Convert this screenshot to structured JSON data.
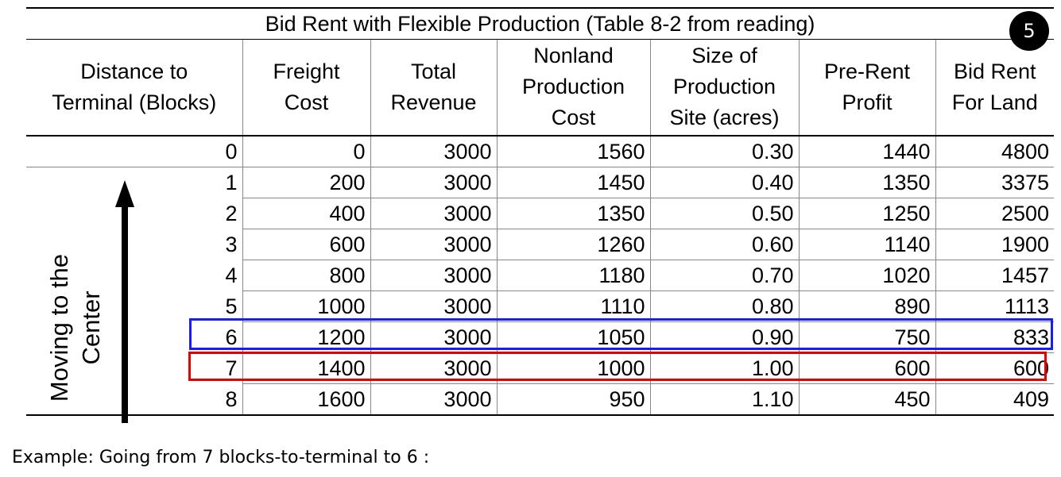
{
  "table": {
    "title": "Bid Rent with Flexible Production (Table 8-2 from reading)",
    "headers": [
      [
        "Distance to",
        "Terminal (Blocks)"
      ],
      [
        "Freight",
        "Cost"
      ],
      [
        "Total",
        "Revenue"
      ],
      [
        "Nonland",
        "Production",
        "Cost"
      ],
      [
        "Size of",
        "Production",
        "Site (acres)"
      ],
      [
        "Pre-Rent",
        "Profit"
      ],
      [
        "Bid Rent",
        "For Land"
      ]
    ],
    "rows": [
      [
        "0",
        "0",
        "3000",
        "1560",
        "0.30",
        "1440",
        "4800"
      ],
      [
        "1",
        "200",
        "3000",
        "1450",
        "0.40",
        "1350",
        "3375"
      ],
      [
        "2",
        "400",
        "3000",
        "1350",
        "0.50",
        "1250",
        "2500"
      ],
      [
        "3",
        "600",
        "3000",
        "1260",
        "0.60",
        "1140",
        "1900"
      ],
      [
        "4",
        "800",
        "3000",
        "1180",
        "0.70",
        "1020",
        "1457"
      ],
      [
        "5",
        "1000",
        "3000",
        "1110",
        "0.80",
        "890",
        "1113"
      ],
      [
        "6",
        "1200",
        "3000",
        "1050",
        "0.90",
        "750",
        "833"
      ],
      [
        "7",
        "1400",
        "3000",
        "1000",
        "1.00",
        "600",
        "600"
      ],
      [
        "8",
        "1600",
        "3000",
        "950",
        "1.10",
        "450",
        "409"
      ]
    ]
  },
  "slide_number": "5",
  "arrow_label": [
    "Moving to the",
    "Center"
  ],
  "highlights": [
    {
      "row": "6",
      "color": "#1a1aff"
    },
    {
      "row": "7",
      "color": "#e60000"
    }
  ],
  "caption": "Example: Going from 7 blocks-to-terminal to 6 :"
}
